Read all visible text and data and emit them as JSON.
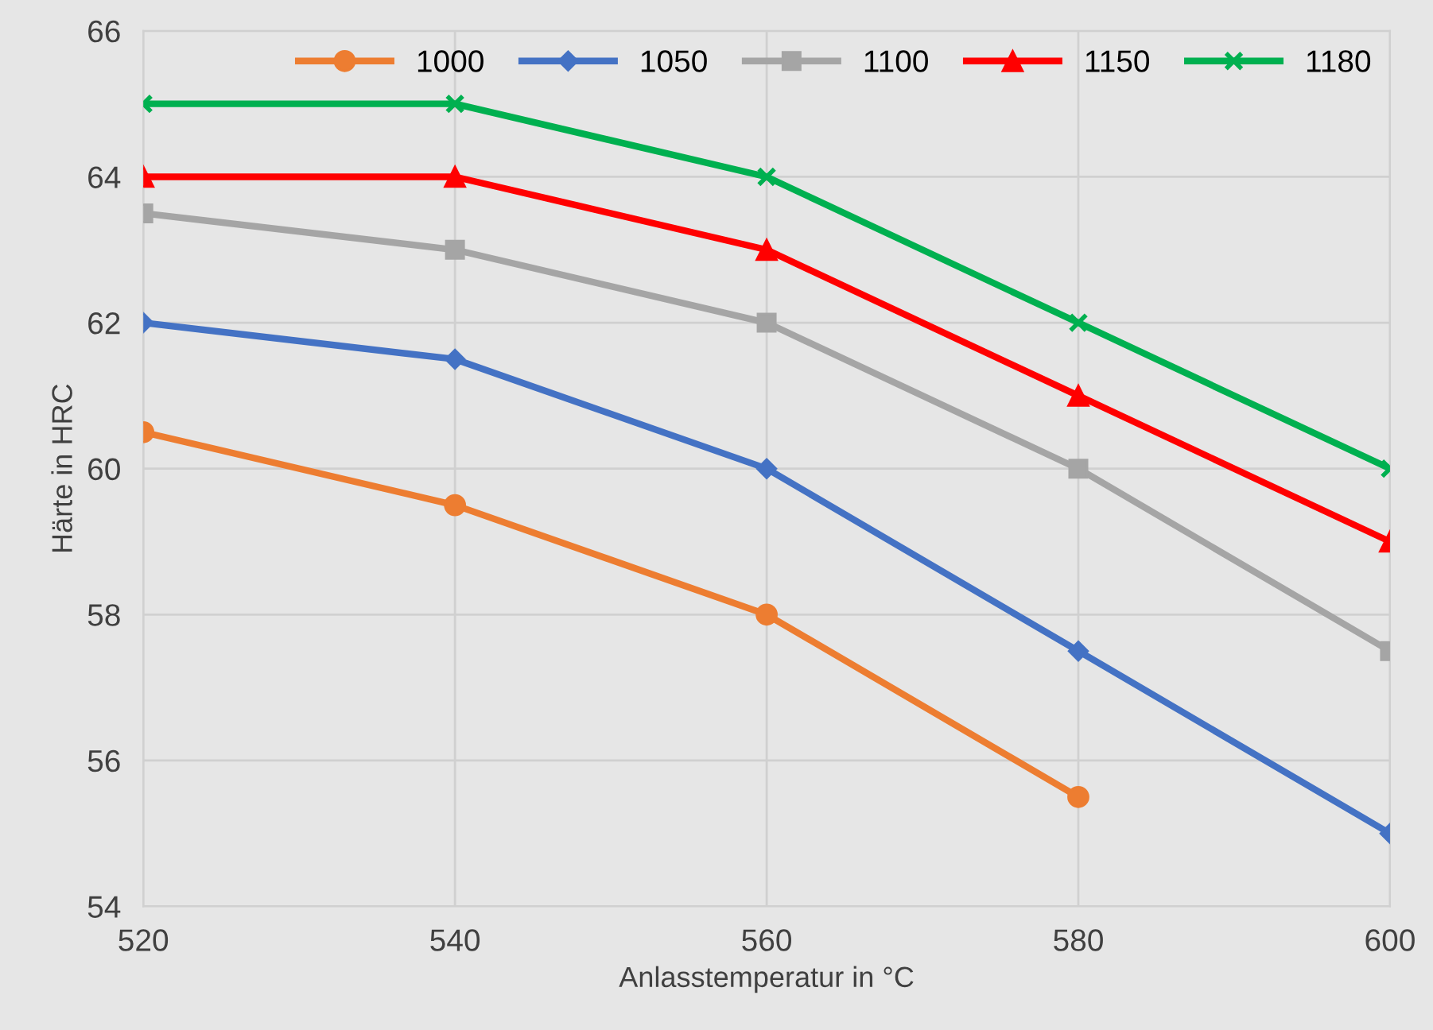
{
  "chart_data": {
    "type": "line",
    "xlabel": "Anlasstemperatur in °C",
    "ylabel": "Härte in HRC",
    "x": [
      520,
      540,
      560,
      580,
      600
    ],
    "series": [
      {
        "name": "1000",
        "color": "#ed7d31",
        "marker": "circle",
        "values": [
          60.5,
          59.5,
          58,
          55.5,
          null
        ]
      },
      {
        "name": "1050",
        "color": "#4472c4",
        "marker": "diamond",
        "values": [
          62,
          61.5,
          60,
          57.5,
          55
        ]
      },
      {
        "name": "1100",
        "color": "#a5a5a5",
        "marker": "square",
        "values": [
          63.5,
          63,
          62,
          60,
          57.5
        ]
      },
      {
        "name": "1150",
        "color": "#ff0000",
        "marker": "triangle",
        "values": [
          64,
          64,
          63,
          61,
          59
        ]
      },
      {
        "name": "1180",
        "color": "#00b050",
        "marker": "cross",
        "values": [
          65,
          65,
          64,
          62,
          60
        ]
      }
    ],
    "xlim": [
      520,
      600
    ],
    "xticks": [
      520,
      540,
      560,
      580,
      600
    ],
    "ylim": [
      54,
      66
    ],
    "yticks": [
      54,
      56,
      58,
      60,
      62,
      64,
      66
    ],
    "grid": true,
    "legend": "top right",
    "line_style": "solid"
  }
}
